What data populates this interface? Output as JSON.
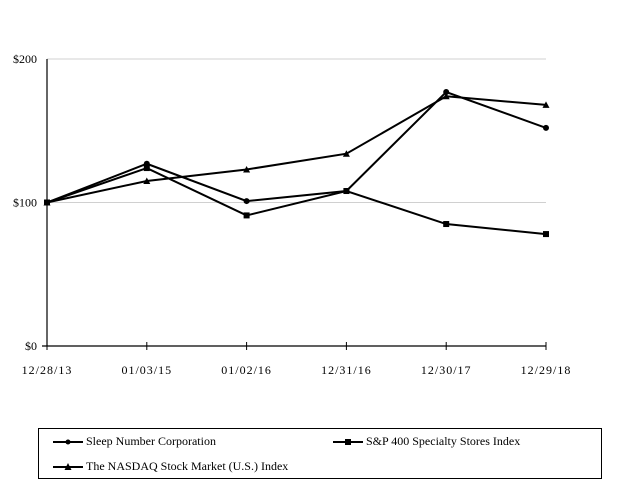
{
  "chart_data": {
    "type": "line",
    "title": "",
    "xlabel": "",
    "ylabel": "",
    "categories": [
      "12/28/13",
      "01/03/15",
      "01/02/16",
      "12/31/16",
      "12/30/17",
      "12/29/18"
    ],
    "ylim": [
      0,
      200
    ],
    "yticks": [
      0,
      100,
      200
    ],
    "ytick_labels": [
      "$0",
      "$100",
      "$200"
    ],
    "grid": "horizontal",
    "legend_position": "bottom",
    "series": [
      {
        "name": "Sleep Number Corporation",
        "marker": "circle",
        "values": [
          100,
          127,
          101,
          108,
          177,
          152
        ]
      },
      {
        "name": "S&P 400 Specialty Stores Index",
        "marker": "square",
        "values": [
          100,
          124,
          91,
          108,
          85,
          78
        ]
      },
      {
        "name": "The NASDAQ Stock Market (U.S.) Index",
        "marker": "triangle",
        "values": [
          100,
          115,
          123,
          134,
          174,
          168
        ]
      }
    ],
    "colors": {
      "line": "#000000",
      "grid": "#d0d0d0"
    }
  }
}
